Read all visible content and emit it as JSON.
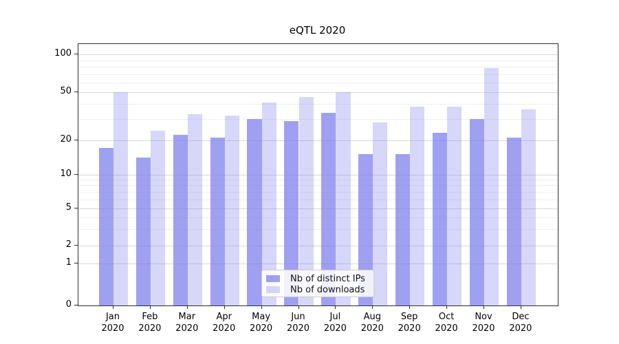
{
  "title": "eQTL 2020",
  "chart_data": {
    "type": "bar",
    "title": "eQTL 2020",
    "categories": [
      "Jan",
      "Feb",
      "Mar",
      "Apr",
      "May",
      "Jun",
      "Jul",
      "Aug",
      "Sep",
      "Oct",
      "Nov",
      "Dec"
    ],
    "category_year": "2020",
    "series": [
      {
        "name": "Nb of distinct IPs",
        "color": "rgba(123,123,237,0.72)",
        "values": [
          17,
          14,
          22,
          21,
          30,
          29,
          34,
          15,
          15,
          23,
          30,
          21
        ]
      },
      {
        "name": "Nb of downloads",
        "color": "rgba(123,123,237,0.30)",
        "values": [
          50,
          24,
          33,
          32,
          41,
          46,
          50,
          28,
          38,
          38,
          78,
          36
        ]
      }
    ],
    "xlabel": "",
    "ylabel": "",
    "y_scale": "symlog-like",
    "y_ticks": [
      0,
      1,
      2,
      5,
      10,
      20,
      50,
      100
    ],
    "y_minor_ticks": [
      3,
      4,
      6,
      7,
      8,
      9,
      30,
      40,
      60,
      70,
      80,
      90
    ],
    "ylim": [
      0,
      120
    ],
    "grid": true,
    "legend_position": "lower center"
  },
  "legend": {
    "items": [
      {
        "label": "Nb of distinct IPs",
        "color": "rgba(123,123,237,0.72)"
      },
      {
        "label": "Nb of downloads",
        "color": "rgba(123,123,237,0.30)"
      }
    ]
  }
}
